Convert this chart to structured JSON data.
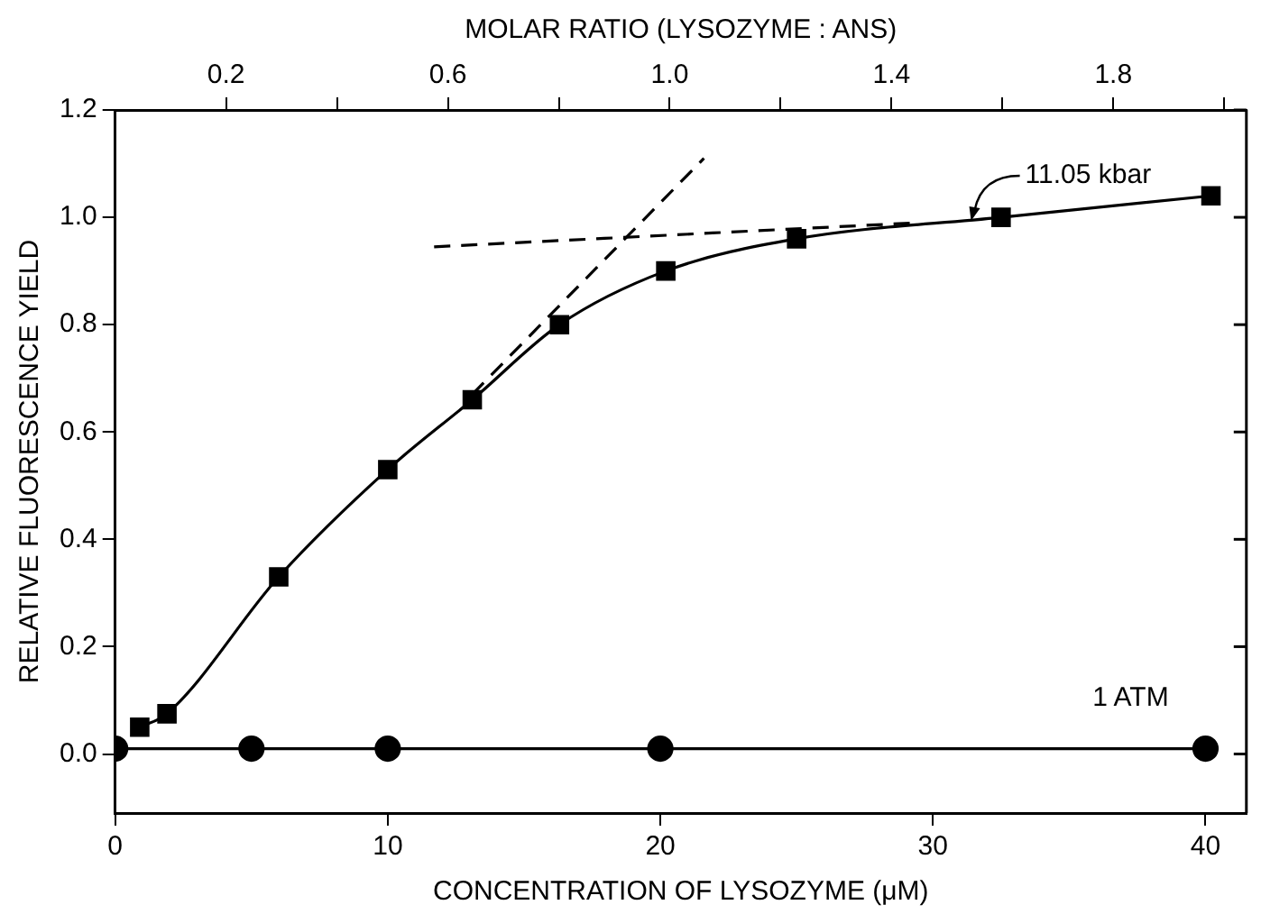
{
  "chart_data": {
    "type": "line",
    "xlabel": "CONCENTRATION OF LYSOZYME (μM)",
    "ylabel": "RELATIVE FLUORESCENCE YIELD",
    "x2label": "MOLAR RATIO (LYSOZYME : ANS)",
    "xlim": [
      0,
      41.5
    ],
    "xticks": [
      0,
      10,
      20,
      30,
      40
    ],
    "x2lim": [
      0,
      2.04
    ],
    "x2ticks": [
      {
        "value": 0.2,
        "label": "0.2"
      },
      {
        "value": 0.4,
        "label": null
      },
      {
        "value": 0.6,
        "label": "0.6"
      },
      {
        "value": 0.8,
        "label": null
      },
      {
        "value": 1,
        "label": "1.0"
      },
      {
        "value": 1.2,
        "label": null
      },
      {
        "value": 1.4,
        "label": "1.4"
      },
      {
        "value": 1.6,
        "label": null
      },
      {
        "value": 1.8,
        "label": "1.8"
      },
      {
        "value": 2,
        "label": null
      }
    ],
    "ylim": [
      -0.11,
      1.2
    ],
    "yticks": [
      {
        "value": 0,
        "label": "0.0"
      },
      {
        "value": 0.2,
        "label": "0.2"
      },
      {
        "value": 0.4,
        "label": "0.4"
      },
      {
        "value": 0.6,
        "label": "0.6"
      },
      {
        "value": 0.8,
        "label": "0.8"
      },
      {
        "value": 1,
        "label": "1.0"
      },
      {
        "value": 1.2,
        "label": "1.2"
      }
    ],
    "grid": false,
    "legend": false,
    "series": [
      {
        "color": "#000000",
        "marker": "square",
        "line_style": "solid",
        "x": [
          0.9,
          1.9,
          6,
          10,
          13.1,
          16.3,
          20.2,
          25,
          32.5,
          40.2
        ],
        "values": [
          0.05,
          0.075,
          0.33,
          0.53,
          0.66,
          0.8,
          0.9,
          0.96,
          1.0,
          1.04
        ]
      },
      {
        "color": "#000000",
        "marker": "circle",
        "line_style": "solid",
        "x": [
          0,
          5,
          10,
          20,
          40
        ],
        "values": [
          0.01,
          0.01,
          0.01,
          0.01,
          0.01
        ]
      },
      {
        "color": "#000000",
        "marker": "none",
        "line_style": "dashed",
        "x": [
          13.1,
          21.6
        ],
        "values": [
          0.67,
          1.11
        ]
      },
      {
        "color": "#000000",
        "marker": "none",
        "line_style": "dashed",
        "x": [
          11.7,
          29.5
        ],
        "values": [
          0.945,
          0.99
        ]
      }
    ],
    "annotations": [
      {
        "text": "11.05 kbar",
        "x": 31.4,
        "y": 0.99
      },
      "1 ATM"
    ]
  }
}
